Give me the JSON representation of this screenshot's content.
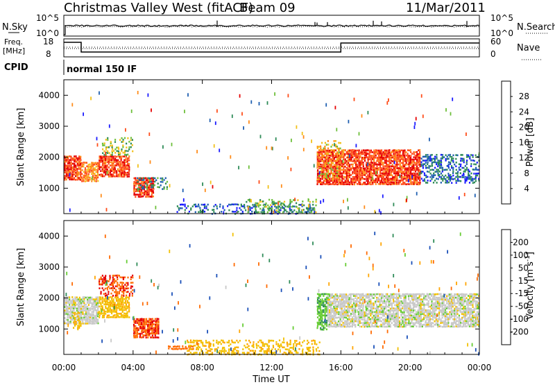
{
  "header": {
    "title": "Christmas Valley West (fitACF)",
    "beam": "Beam 09",
    "date": "11/Mar/2011"
  },
  "top_panels": {
    "nsky_label": "N.Sky",
    "nsearch_label": "N.Search",
    "nsky_ticks": [
      "10^5",
      "10^0"
    ],
    "nsearch_ticks": [
      "10^5",
      "10^0"
    ],
    "freq_label_1": "Freq.",
    "freq_label_2": "[MHz]",
    "freq_ticks": [
      "18",
      "8"
    ],
    "nave_label": "Nave",
    "nave_ticks": [
      "60",
      "0"
    ],
    "cpid_label": "CPID",
    "cpid_value": "normal 150 IF"
  },
  "colors": {
    "power_scale": [
      "#1a1aff",
      "#1f5fb0",
      "#2e8b57",
      "#6dbf3a",
      "#f2c01a",
      "#ff8c1a",
      "#ff4d1a",
      "#e60000"
    ],
    "velocity_scale": [
      "#e60000",
      "#ff6a00",
      "#ffa500",
      "#f2c000",
      "#c8c8c8",
      "#66cc33",
      "#2e8b57",
      "#1a4fb8",
      "#1a1aff"
    ]
  },
  "chart_data": [
    {
      "type": "heatmap",
      "panel": "power",
      "xlabel": "Time UT",
      "ylabel": "Slant Range [km]",
      "x_ticks": [
        "00:00",
        "04:00",
        "08:00",
        "12:00",
        "16:00",
        "20:00",
        "00:00"
      ],
      "x_range_hours": [
        0,
        24
      ],
      "y_ticks": [
        "1000",
        "2000",
        "3000",
        "4000"
      ],
      "y_range_km": [
        180,
        4500
      ],
      "colorbar_label": "Power [dB]",
      "colorbar_ticks": [
        "4",
        "8",
        "12",
        "16",
        "20",
        "24",
        "28"
      ],
      "colorbar_range": [
        0,
        32
      ],
      "scatter_regions": [
        {
          "t0": 0.0,
          "t1": 1.0,
          "r0": 1300,
          "r1": 2100,
          "level": 28,
          "density": 0.9
        },
        {
          "t0": 1.0,
          "t1": 2.0,
          "r0": 1250,
          "r1": 1900,
          "level": 24,
          "density": 0.85
        },
        {
          "t0": 2.0,
          "t1": 3.8,
          "r0": 1400,
          "r1": 2100,
          "level": 28,
          "density": 0.85
        },
        {
          "t0": 2.2,
          "t1": 4.0,
          "r0": 2100,
          "r1": 2700,
          "level": 16,
          "density": 0.4
        },
        {
          "t0": 4.0,
          "t1": 5.2,
          "r0": 750,
          "r1": 1400,
          "level": 28,
          "density": 0.85
        },
        {
          "t0": 4.2,
          "t1": 6.0,
          "r0": 1000,
          "r1": 1400,
          "level": 10,
          "density": 0.35
        },
        {
          "t0": 14.6,
          "t1": 20.6,
          "r0": 1150,
          "r1": 2300,
          "level": 28,
          "density": 0.85
        },
        {
          "t0": 14.6,
          "t1": 16.0,
          "r0": 1300,
          "r1": 2600,
          "level": 20,
          "density": 0.35
        },
        {
          "t0": 20.6,
          "t1": 24.0,
          "r0": 1200,
          "r1": 2150,
          "level": 8,
          "density": 0.5
        },
        {
          "t0": 6.5,
          "t1": 14.5,
          "r0": 200,
          "r1": 550,
          "level": 8,
          "density": 0.35
        },
        {
          "t0": 10.5,
          "t1": 14.6,
          "r0": 250,
          "r1": 700,
          "level": 14,
          "density": 0.3
        }
      ]
    },
    {
      "type": "heatmap",
      "panel": "velocity",
      "xlabel": "Time UT",
      "ylabel": "Slant Range [km]",
      "x_ticks": [
        "00:00",
        "04:00",
        "08:00",
        "12:00",
        "16:00",
        "20:00",
        "00:00"
      ],
      "x_range_hours": [
        0,
        24
      ],
      "y_ticks": [
        "1000",
        "2000",
        "3000",
        "4000"
      ],
      "y_range_km": [
        180,
        4500
      ],
      "colorbar_label": "Velocity [m s^-1]",
      "colorbar_ticks": [
        "200",
        "100",
        "50",
        "15",
        "-15",
        "-50",
        "-100",
        "-200"
      ],
      "colorbar_range": [
        -250,
        250
      ],
      "scatter_regions": [
        {
          "t0": 0.0,
          "t1": 2.0,
          "r0": 1200,
          "r1": 2100,
          "level": 0,
          "density": 0.85
        },
        {
          "t0": 0.5,
          "t1": 1.0,
          "r0": 1000,
          "r1": 1600,
          "level": -40,
          "density": 0.5
        },
        {
          "t0": 2.0,
          "t1": 3.8,
          "r0": 1400,
          "r1": 2100,
          "level": -40,
          "density": 0.8
        },
        {
          "t0": 2.0,
          "t1": 4.0,
          "r0": 2100,
          "r1": 2800,
          "level": -200,
          "density": 0.45
        },
        {
          "t0": 4.0,
          "t1": 5.5,
          "r0": 750,
          "r1": 1400,
          "level": -200,
          "density": 0.85
        },
        {
          "t0": 6.0,
          "t1": 7.5,
          "r0": 380,
          "r1": 520,
          "level": -120,
          "density": 0.7
        },
        {
          "t0": 7.0,
          "t1": 14.8,
          "r0": 200,
          "r1": 700,
          "level": -40,
          "density": 0.4
        },
        {
          "t0": 14.6,
          "t1": 15.2,
          "r0": 1000,
          "r1": 2200,
          "level": 40,
          "density": 0.7
        },
        {
          "t0": 15.2,
          "t1": 24.0,
          "r0": 1100,
          "r1": 2200,
          "level": 0,
          "density": 0.8
        }
      ]
    }
  ]
}
